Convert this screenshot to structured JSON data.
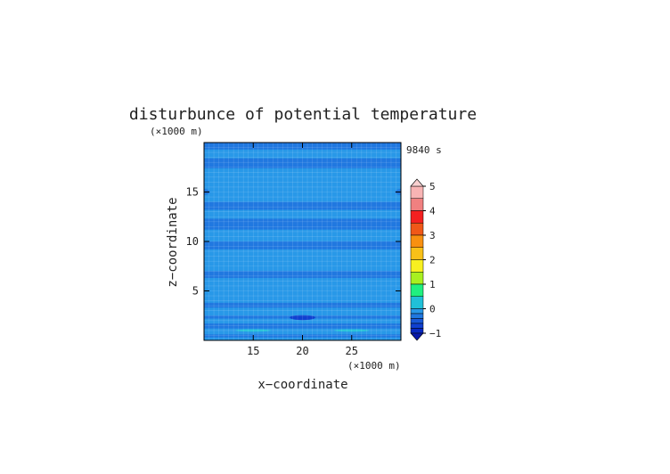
{
  "chart_data": {
    "type": "heatmap",
    "title": "disturbunce of potential temperature",
    "time_label": "9840 s",
    "xlabel": "x−coordinate",
    "ylabel": "z−coordinate",
    "x_unit": "(×1000 m)",
    "y_unit": "(×1000 m)",
    "xlim": [
      10,
      30
    ],
    "ylim": [
      0,
      20
    ],
    "x_ticks": [
      15,
      20,
      25
    ],
    "y_ticks": [
      5,
      10,
      15
    ],
    "grid": true,
    "colorbar": {
      "min": -1,
      "max": 5,
      "tick_labels": [
        "5",
        "4",
        "3",
        "2",
        "1",
        "0",
        "−1"
      ],
      "tick_values": [
        5,
        4,
        3,
        2,
        1,
        0,
        -1
      ],
      "levels": [
        {
          "from": 4.5,
          "to": 5.0,
          "color": "#f8b4b4"
        },
        {
          "from": 4.0,
          "to": 4.5,
          "color": "#f08080"
        },
        {
          "from": 3.5,
          "to": 4.0,
          "color": "#f42020"
        },
        {
          "from": 3.0,
          "to": 3.5,
          "color": "#f05818"
        },
        {
          "from": 2.5,
          "to": 3.0,
          "color": "#f89010"
        },
        {
          "from": 2.0,
          "to": 2.5,
          "color": "#f8c018"
        },
        {
          "from": 1.5,
          "to": 2.0,
          "color": "#f8f020"
        },
        {
          "from": 1.0,
          "to": 1.5,
          "color": "#a8f020"
        },
        {
          "from": 0.5,
          "to": 1.0,
          "color": "#20f080"
        },
        {
          "from": 0.0,
          "to": 0.5,
          "color": "#20c0d8"
        },
        {
          "from": -0.2,
          "to": 0.0,
          "color": "#2898e8"
        },
        {
          "from": -0.4,
          "to": -0.2,
          "color": "#2078e0"
        },
        {
          "from": -0.6,
          "to": -0.4,
          "color": "#1858d8"
        },
        {
          "from": -0.8,
          "to": -0.6,
          "color": "#1040d0"
        },
        {
          "from": -1.0,
          "to": -0.8,
          "color": "#0828c0"
        }
      ],
      "over_color": "#f8d0d0",
      "under_color": "#0818a8"
    },
    "background_color": "#2898e8",
    "bands": [
      {
        "z0": 0.3,
        "z1": 0.6,
        "color": "#2078e0"
      },
      {
        "z0": 1.2,
        "z1": 1.7,
        "color": "#2078e0"
      },
      {
        "z0": 2.2,
        "z1": 2.5,
        "color": "#2078e0"
      },
      {
        "z0": 3.3,
        "z1": 3.8,
        "color": "#2078e0"
      },
      {
        "z0": 6.3,
        "z1": 7.0,
        "color": "#2078e0"
      },
      {
        "z0": 9.2,
        "z1": 10.0,
        "color": "#2078e0"
      },
      {
        "z0": 11.2,
        "z1": 12.3,
        "color": "#2078e0"
      },
      {
        "z0": 13.2,
        "z1": 14.0,
        "color": "#2078e0"
      },
      {
        "z0": 17.4,
        "z1": 18.4,
        "color": "#2078e0"
      },
      {
        "z0": 19.3,
        "z1": 20.0,
        "color": "#2078e0"
      }
    ],
    "features": [
      {
        "x": 20.0,
        "z": 2.3,
        "rx": 1.3,
        "rz": 0.25,
        "color": "#1040d0"
      },
      {
        "x": 15.0,
        "z": 1.0,
        "rx": 1.8,
        "rz": 0.12,
        "color": "#20c0d8"
      },
      {
        "x": 25.0,
        "z": 1.0,
        "rx": 1.8,
        "rz": 0.12,
        "color": "#20c0d8"
      },
      {
        "x": 10.0,
        "z": 15.0,
        "rx": 0.6,
        "rz": 0.3,
        "color": "#2078e0"
      },
      {
        "x": 30.0,
        "z": 15.0,
        "rx": 0.6,
        "rz": 0.3,
        "color": "#2078e0"
      }
    ]
  }
}
